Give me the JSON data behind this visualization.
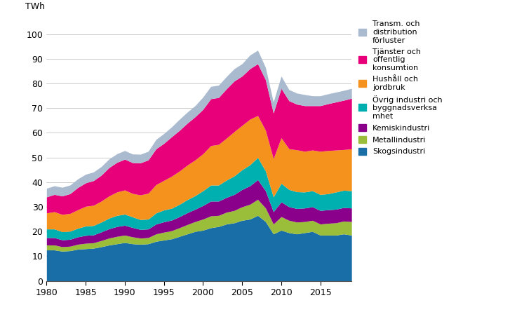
{
  "years": [
    1980,
    1981,
    1982,
    1983,
    1984,
    1985,
    1986,
    1987,
    1988,
    1989,
    1990,
    1991,
    1992,
    1993,
    1994,
    1995,
    1996,
    1997,
    1998,
    1999,
    2000,
    2001,
    2002,
    2003,
    2004,
    2005,
    2006,
    2007,
    2008,
    2009,
    2010,
    2011,
    2012,
    2013,
    2014,
    2015,
    2016,
    2017,
    2018,
    2019
  ],
  "Skogsindustri": [
    12.5,
    12.5,
    12.0,
    12.2,
    12.8,
    13.0,
    13.2,
    13.8,
    14.5,
    15.0,
    15.5,
    15.0,
    14.8,
    15.0,
    16.0,
    16.5,
    17.0,
    18.0,
    19.0,
    20.0,
    20.5,
    21.5,
    22.0,
    23.0,
    23.5,
    24.5,
    25.0,
    26.5,
    24.0,
    19.0,
    20.5,
    19.5,
    19.0,
    19.5,
    20.0,
    18.5,
    18.5,
    18.5,
    19.0,
    18.5
  ],
  "Metallindustri": [
    2.0,
    2.0,
    1.8,
    1.8,
    2.0,
    2.2,
    2.2,
    2.5,
    2.8,
    3.0,
    3.0,
    2.8,
    2.5,
    2.5,
    3.0,
    3.2,
    3.3,
    3.5,
    3.8,
    4.0,
    4.5,
    4.8,
    4.5,
    4.8,
    5.0,
    5.5,
    6.0,
    6.5,
    5.5,
    4.0,
    5.5,
    5.0,
    4.8,
    4.5,
    4.5,
    4.5,
    4.8,
    5.0,
    5.2,
    5.5
  ],
  "Kemiskindustri": [
    3.0,
    3.0,
    2.8,
    2.8,
    3.0,
    3.2,
    3.2,
    3.5,
    3.8,
    4.0,
    4.0,
    3.8,
    3.5,
    3.5,
    4.0,
    4.2,
    4.3,
    4.5,
    4.8,
    5.0,
    5.5,
    6.0,
    5.8,
    6.0,
    6.5,
    7.0,
    7.5,
    8.0,
    7.0,
    5.0,
    6.0,
    5.5,
    5.5,
    5.5,
    5.5,
    5.5,
    5.5,
    5.5,
    5.5,
    5.5
  ],
  "Ovrig_industri": [
    3.5,
    3.5,
    3.3,
    3.3,
    3.5,
    3.8,
    3.8,
    4.0,
    4.3,
    4.5,
    4.5,
    4.3,
    4.0,
    4.0,
    4.5,
    4.8,
    4.8,
    5.0,
    5.3,
    5.5,
    6.0,
    6.5,
    6.5,
    7.0,
    7.5,
    8.0,
    8.5,
    9.0,
    8.0,
    6.0,
    7.5,
    7.0,
    6.8,
    6.5,
    6.5,
    6.5,
    6.5,
    7.0,
    7.0,
    7.0
  ],
  "Hushall": [
    6.5,
    7.0,
    7.0,
    7.2,
    7.5,
    8.0,
    8.2,
    8.5,
    9.0,
    9.5,
    9.8,
    9.5,
    10.0,
    10.5,
    11.5,
    12.0,
    13.0,
    13.5,
    14.0,
    14.5,
    15.0,
    16.0,
    16.5,
    17.0,
    18.0,
    18.0,
    18.5,
    17.0,
    16.5,
    15.5,
    18.5,
    16.5,
    17.0,
    16.5,
    16.5,
    17.5,
    17.5,
    17.0,
    16.5,
    17.0
  ],
  "Tjanster": [
    6.5,
    7.0,
    7.5,
    8.0,
    9.0,
    9.5,
    10.0,
    10.5,
    11.5,
    12.0,
    12.5,
    12.5,
    13.0,
    13.5,
    14.5,
    15.0,
    16.0,
    16.5,
    17.0,
    17.5,
    18.0,
    19.0,
    19.0,
    20.0,
    20.5,
    20.0,
    20.5,
    21.0,
    20.5,
    18.5,
    20.0,
    19.5,
    18.5,
    18.5,
    18.0,
    18.5,
    19.0,
    19.5,
    20.0,
    20.5
  ],
  "Transm": [
    3.5,
    3.5,
    3.5,
    3.5,
    3.5,
    3.5,
    3.5,
    3.5,
    3.5,
    3.5,
    3.5,
    3.5,
    3.5,
    3.5,
    3.8,
    4.0,
    4.0,
    4.5,
    4.5,
    4.5,
    5.0,
    5.0,
    5.0,
    5.0,
    5.0,
    5.0,
    5.5,
    5.5,
    5.0,
    4.5,
    5.0,
    4.5,
    4.5,
    4.5,
    4.0,
    4.0,
    4.0,
    4.0,
    4.0,
    4.0
  ],
  "colors": {
    "Skogsindustri": "#1a6ea8",
    "Metallindustri": "#9abe3a",
    "Kemiskindustri": "#8B008B",
    "Ovrig_industri": "#00B0B0",
    "Hushall": "#F5921E",
    "Tjanster": "#E8007A",
    "Transm": "#AABBD0"
  },
  "legend_labels": {
    "Transm": "Transm. och\ndistribution\nförluster",
    "Tjanster": "Tjänster och\noffentlig\nkonsumtion",
    "Hushall": "Hushåll och\njordbruk",
    "Ovrig_industri": "Övrig industri och\nbyggnadsverksa\nmhet",
    "Kemiskindustri": "Kemiskindustri",
    "Metallindustri": "Metallindustri",
    "Skogsindustri": "Skogsindustri"
  },
  "ylabel": "TWh",
  "ylim": [
    0,
    105
  ],
  "yticks": [
    0,
    10,
    20,
    30,
    40,
    50,
    60,
    70,
    80,
    90,
    100
  ],
  "xticks": [
    1980,
    1985,
    1990,
    1995,
    2000,
    2005,
    2010,
    2015
  ]
}
